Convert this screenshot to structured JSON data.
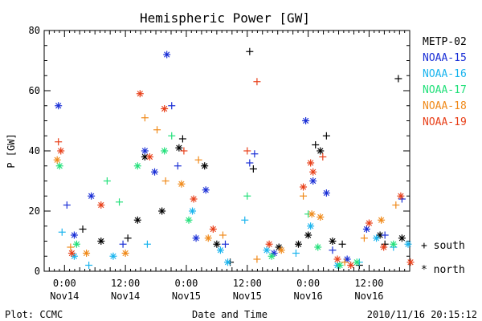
{
  "chart_data": {
    "type": "scatter",
    "title": "Hemispheric Power [GW]",
    "ylabel": "P [GW]",
    "xlabel": "Date and Time",
    "ylim": [
      0,
      80
    ],
    "y_ticks": [
      0,
      20,
      40,
      60,
      80
    ],
    "xlim": [
      -0.1667,
      2.8333
    ],
    "x_ticks": [
      {
        "x": 0.0,
        "line1": "0:00",
        "line2": "Nov14"
      },
      {
        "x": 0.5,
        "line1": "12:00",
        "line2": "Nov14"
      },
      {
        "x": 1.0,
        "line1": "0:00",
        "line2": "Nov15"
      },
      {
        "x": 1.5,
        "line1": "12:00",
        "line2": "Nov15"
      },
      {
        "x": 2.0,
        "line1": "0:00",
        "line2": "Nov16"
      },
      {
        "x": 2.5,
        "line1": "12:00",
        "line2": "Nov16"
      }
    ],
    "x_unit_note": "days from 2010-11-14 00:00 UT",
    "series": [
      {
        "name": "METP-02",
        "color": "#000000",
        "points": [
          [
            0.15,
            14,
            "+"
          ],
          [
            0.3,
            10,
            "*"
          ],
          [
            0.52,
            11,
            "+"
          ],
          [
            0.6,
            17,
            "*"
          ],
          [
            0.66,
            38,
            "*"
          ],
          [
            0.8,
            20,
            "*"
          ],
          [
            0.94,
            41,
            "*"
          ],
          [
            0.97,
            44,
            "+"
          ],
          [
            1.15,
            35,
            "*"
          ],
          [
            1.25,
            9,
            "*"
          ],
          [
            1.36,
            3,
            "+"
          ],
          [
            1.52,
            73,
            "+"
          ],
          [
            1.55,
            34,
            "+"
          ],
          [
            1.76,
            8,
            "*"
          ],
          [
            1.92,
            9,
            "*"
          ],
          [
            2.0,
            12,
            "*"
          ],
          [
            2.06,
            42,
            "+"
          ],
          [
            2.1,
            40,
            "*"
          ],
          [
            2.15,
            45,
            "+"
          ],
          [
            2.2,
            10,
            "*"
          ],
          [
            2.28,
            9,
            "+"
          ],
          [
            2.42,
            2,
            "+"
          ],
          [
            2.59,
            12,
            "*"
          ],
          [
            2.63,
            9,
            "+"
          ],
          [
            2.74,
            64,
            "+"
          ],
          [
            2.77,
            11,
            "*"
          ]
        ]
      },
      {
        "name": "NOAA-15",
        "color": "#1a2fd6",
        "points": [
          [
            -0.05,
            55,
            "*"
          ],
          [
            0.02,
            22,
            "+"
          ],
          [
            0.08,
            12,
            "*"
          ],
          [
            0.22,
            25,
            "*"
          ],
          [
            0.48,
            9,
            "+"
          ],
          [
            0.66,
            40,
            "*"
          ],
          [
            0.74,
            33,
            "*"
          ],
          [
            0.84,
            72,
            "*"
          ],
          [
            0.88,
            55,
            "+"
          ],
          [
            0.93,
            35,
            "+"
          ],
          [
            1.08,
            11,
            "*"
          ],
          [
            1.16,
            27,
            "*"
          ],
          [
            1.32,
            9,
            "+"
          ],
          [
            1.52,
            36,
            "+"
          ],
          [
            1.56,
            39,
            "+"
          ],
          [
            1.72,
            6,
            "*"
          ],
          [
            1.98,
            50,
            "*"
          ],
          [
            2.04,
            30,
            "*"
          ],
          [
            2.15,
            26,
            "*"
          ],
          [
            2.2,
            7,
            "+"
          ],
          [
            2.32,
            4,
            "*"
          ],
          [
            2.48,
            14,
            "*"
          ],
          [
            2.63,
            12,
            "+"
          ],
          [
            2.77,
            24,
            "+"
          ]
        ]
      },
      {
        "name": "NOAA-16",
        "color": "#19b4ee",
        "points": [
          [
            -0.02,
            13,
            "+"
          ],
          [
            0.08,
            5,
            "*"
          ],
          [
            0.2,
            2,
            "+"
          ],
          [
            0.4,
            5,
            "*"
          ],
          [
            0.68,
            9,
            "+"
          ],
          [
            1.05,
            20,
            "*"
          ],
          [
            1.28,
            7,
            "*"
          ],
          [
            1.34,
            3,
            "*"
          ],
          [
            1.48,
            17,
            "+"
          ],
          [
            1.66,
            7,
            "*"
          ],
          [
            1.9,
            6,
            "+"
          ],
          [
            2.02,
            15,
            "*"
          ],
          [
            2.24,
            2,
            "*"
          ],
          [
            2.42,
            3,
            "+"
          ],
          [
            2.56,
            11,
            "*"
          ],
          [
            2.7,
            8,
            "+"
          ],
          [
            2.82,
            9,
            "*"
          ]
        ]
      },
      {
        "name": "NOAA-17",
        "color": "#22e07a",
        "points": [
          [
            -0.04,
            35,
            "*"
          ],
          [
            0.1,
            9,
            "*"
          ],
          [
            0.35,
            30,
            "+"
          ],
          [
            0.45,
            23,
            "+"
          ],
          [
            0.6,
            35,
            "*"
          ],
          [
            0.82,
            40,
            "*"
          ],
          [
            0.88,
            45,
            "+"
          ],
          [
            1.02,
            17,
            "*"
          ],
          [
            1.5,
            25,
            "+"
          ],
          [
            1.7,
            5,
            "*"
          ],
          [
            2.0,
            19,
            "+"
          ],
          [
            2.08,
            8,
            "*"
          ],
          [
            2.26,
            2,
            "*"
          ],
          [
            2.4,
            3,
            "*"
          ],
          [
            2.7,
            9,
            "*"
          ]
        ]
      },
      {
        "name": "NOAA-18",
        "color": "#f08a1a",
        "points": [
          [
            -0.06,
            37,
            "*"
          ],
          [
            0.05,
            8,
            "+"
          ],
          [
            0.18,
            6,
            "*"
          ],
          [
            0.5,
            6,
            "*"
          ],
          [
            0.66,
            51,
            "+"
          ],
          [
            0.76,
            47,
            "+"
          ],
          [
            0.83,
            30,
            "+"
          ],
          [
            0.96,
            29,
            "*"
          ],
          [
            1.1,
            37,
            "+"
          ],
          [
            1.18,
            11,
            "*"
          ],
          [
            1.3,
            12,
            "+"
          ],
          [
            1.58,
            4,
            "+"
          ],
          [
            1.78,
            7,
            "*"
          ],
          [
            1.96,
            25,
            "+"
          ],
          [
            2.03,
            19,
            "*"
          ],
          [
            2.1,
            18,
            "*"
          ],
          [
            2.3,
            3,
            "+"
          ],
          [
            2.46,
            11,
            "+"
          ],
          [
            2.6,
            17,
            "*"
          ],
          [
            2.72,
            22,
            "+"
          ]
        ]
      },
      {
        "name": "NOAA-19",
        "color": "#e8401a",
        "points": [
          [
            -0.05,
            43,
            "+"
          ],
          [
            -0.03,
            40,
            "*"
          ],
          [
            0.06,
            6,
            "*"
          ],
          [
            0.3,
            22,
            "*"
          ],
          [
            0.62,
            59,
            "*"
          ],
          [
            0.7,
            38,
            "*"
          ],
          [
            0.82,
            54,
            "*"
          ],
          [
            0.98,
            40,
            "+"
          ],
          [
            1.06,
            24,
            "*"
          ],
          [
            1.22,
            14,
            "*"
          ],
          [
            1.5,
            40,
            "+"
          ],
          [
            1.58,
            63,
            "+"
          ],
          [
            1.68,
            9,
            "*"
          ],
          [
            1.96,
            28,
            "*"
          ],
          [
            2.02,
            36,
            "*"
          ],
          [
            2.04,
            33,
            "*"
          ],
          [
            2.12,
            38,
            "+"
          ],
          [
            2.24,
            4,
            "*"
          ],
          [
            2.35,
            2,
            "*"
          ],
          [
            2.5,
            16,
            "*"
          ],
          [
            2.62,
            8,
            "*"
          ],
          [
            2.76,
            25,
            "*"
          ],
          [
            2.84,
            3,
            "*"
          ]
        ]
      }
    ],
    "legend_position": "right",
    "marker_legend": [
      {
        "symbol": "+",
        "label": "south"
      },
      {
        "symbol": "*",
        "label": "north"
      }
    ]
  },
  "footer": {
    "plot_credit": "Plot: CCMC",
    "timestamp": "2010/11/16 20:15:12"
  }
}
